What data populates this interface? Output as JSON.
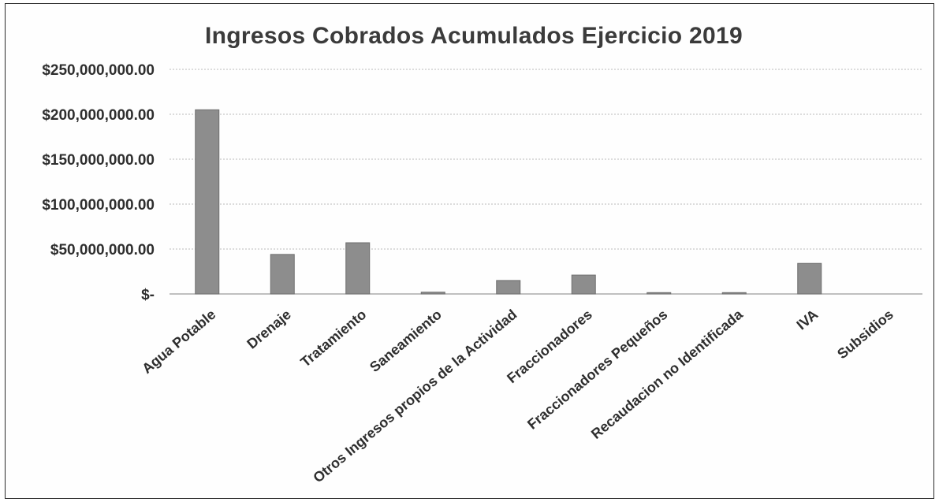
{
  "chart_data": {
    "type": "bar",
    "title": "Ingresos Cobrados Acumulados Ejercicio 2019",
    "xlabel": "",
    "ylabel": "",
    "ylim": [
      0,
      250000000
    ],
    "y_ticks": [
      {
        "value": 0,
        "label": "$-"
      },
      {
        "value": 50000000,
        "label": "$50,000,000.00"
      },
      {
        "value": 100000000,
        "label": "$100,000,000.00"
      },
      {
        "value": 150000000,
        "label": "$150,000,000.00"
      },
      {
        "value": 200000000,
        "label": "$200,000,000.00"
      },
      {
        "value": 250000000,
        "label": "$250,000,000.00"
      }
    ],
    "grid": true,
    "legend": "none",
    "bar_color": "#8d8d8d",
    "categories": [
      "Agua Potable",
      "Drenaje",
      "Tratamiento",
      "Saneamiento",
      "Otros Ingresos propios de la Actividad",
      "Fraccionadores",
      "Fraccionadores Pequeños",
      "Recaudacion no Identificada",
      "IVA",
      "Subsidios"
    ],
    "values": [
      205000000,
      44000000,
      57000000,
      2000000,
      15000000,
      21000000,
      1500000,
      1500000,
      34000000,
      0
    ]
  }
}
